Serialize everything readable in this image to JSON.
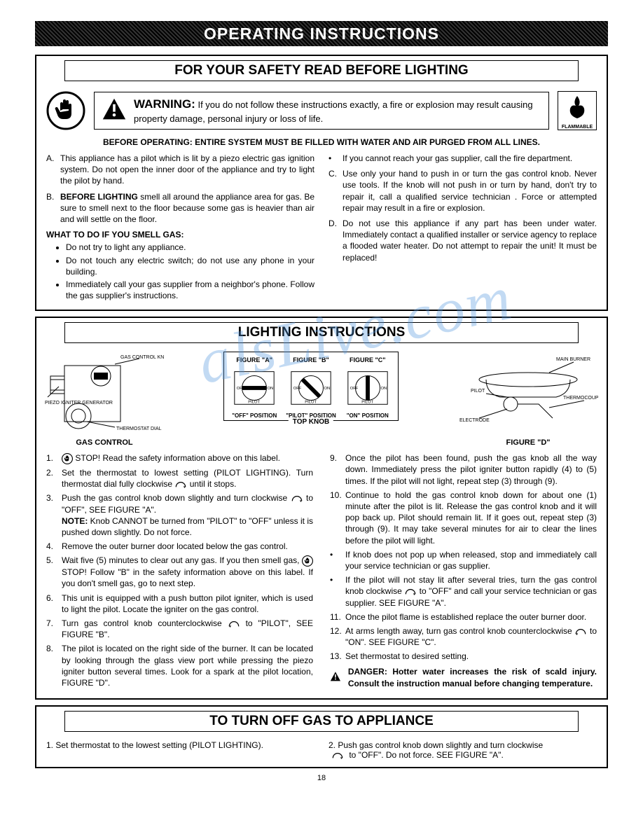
{
  "page_number": "18",
  "main_title": "OPERATING  INSTRUCTIONS",
  "watermark_fragment": "alsLive.com",
  "safety": {
    "header": "FOR YOUR SAFETY READ BEFORE LIGHTING",
    "warning_label": "WARNING:",
    "warning_text": "If you do not follow these instructions exactly, a fire or explosion may result causing property damage, personal injury or loss of life.",
    "flammable_label": "FLAMMABLE",
    "before_operating": "BEFORE OPERATING: ENTIRE SYSTEM MUST BE FILLED WITH WATER AND AIR PURGED FROM ALL LINES.",
    "left_items": [
      {
        "letter": "A.",
        "text": "This appliance has a pilot which is lit by a piezo electric gas ignition system. Do not open the inner door of the appliance and try to light the pilot by hand."
      },
      {
        "letter": "B.",
        "bold_lead": "BEFORE LIGHTING",
        "text": " smell all around the appliance area for gas. Be sure to smell next to the floor because some gas is heavier than air and will settle on the floor."
      }
    ],
    "smell_heading": "WHAT TO DO IF YOU SMELL GAS:",
    "smell_bullets": [
      "Do not try to light any appliance.",
      "Do not touch any electric switch; do not use any phone in your building.",
      "Immediately call your gas supplier from a neighbor's phone. Follow the gas supplier's instructions."
    ],
    "right_items": [
      {
        "letter": "•",
        "text": "If you cannot reach your gas supplier, call the fire department."
      },
      {
        "letter": "C.",
        "text": "Use only your hand to push in or turn the gas control knob. Never use tools. If the knob will not push in or turn by hand, don't try to repair it, call a qualified service technician . Force or attempted repair may result in a fire or explosion."
      },
      {
        "letter": "D.",
        "text": "Do not use this appliance if any part has been under water. Immediately contact a qualified installer or service agency to replace a flooded water heater. Do not attempt to repair the unit! It must be replaced!"
      }
    ]
  },
  "lighting": {
    "header": "LIGHTING INSTRUCTIONS",
    "left_diagram_caption": "GAS CONTROL",
    "left_labels": {
      "knob": "GAS CONTROL KNOB",
      "piezo": "PIEZO IGNITER GENERATOR",
      "thermo": "THERMOSTAT DIAL"
    },
    "knob_group_label": "TOP KNOB",
    "figures": [
      {
        "top": "FIGURE \"A\"",
        "pos": "\"OFF\" POSITION",
        "left": "OFF",
        "right": "ON",
        "bottom": "PILOT"
      },
      {
        "top": "FIGURE \"B\"",
        "pos": "\"PILOT\" POSITION",
        "left": "OFF",
        "right": "ON",
        "bottom": "PILOT"
      },
      {
        "top": "FIGURE \"C\"",
        "pos": "\"ON\" POSITION",
        "left": "OFF",
        "right": "ON",
        "bottom": "PILOT"
      }
    ],
    "right_labels": {
      "main": "MAIN BURNER",
      "pilot": "PILOT",
      "electrode": "ELECTRODE",
      "thermo": "THERMOCOUPLE"
    },
    "right_diagram_caption": "FIGURE \"D\"",
    "steps_left": [
      {
        "n": "1.",
        "text": "STOP!  Read the safety information above on this label.",
        "icon": "hand"
      },
      {
        "n": "2.",
        "text": "Set the thermostat to lowest setting (PILOT LIGHTING). Turn thermostat dial fully clockwise ",
        "arrow": "cw",
        "tail": " until it stops."
      },
      {
        "n": "3.",
        "text": "Push the gas control knob down slightly and turn clockwise ",
        "arrow": "cw",
        "tail": " to \"OFF\", SEE FIGURE \"A\".",
        "note_bold": "NOTE:",
        "note": " Knob CANNOT be turned from \"PILOT\" to \"OFF\" unless it is pushed down slightly.  Do not force."
      },
      {
        "n": "4.",
        "text": "Remove the outer burner door located below the gas control."
      },
      {
        "n": "5.",
        "text": "Wait five (5) minutes to clear out any gas.  If you then smell gas, ",
        "icon": "hand-inline",
        "tail": " STOP!  Follow \"B\" in the safety information above on  this label. If you don't smell gas, go to next step."
      },
      {
        "n": "6.",
        "text": "This unit is equipped with a push button pilot igniter, which is used to light the pilot. Locate the igniter on the gas control."
      },
      {
        "n": "7.",
        "text": "Turn gas control knob counterclockwise ",
        "arrow": "ccw",
        "tail": " to \"PILOT\", SEE FIGURE \"B\"."
      },
      {
        "n": "8.",
        "text": "The pilot is located on the right side of the burner. It can be located by looking through the glass view port while pressing the piezo igniter button several times. Look for a spark at the pilot location,  FIGURE \"D\"."
      }
    ],
    "steps_right": [
      {
        "n": "9.",
        "text": "Once the pilot has been found, push the gas knob all the way down.  Immediately press the pilot igniter button rapidly (4) to (5) times. If the pilot will not light, repeat step (3) through (9)."
      },
      {
        "n": "10.",
        "text": "Continue to hold the gas control knob down for about one (1) minute after the pilot is lit. Release the gas control knob and it will pop back up. Pilot should remain lit. If it goes out, repeat step (3) through (9). It may take several minutes for air to clear the lines before the pilot will light."
      },
      {
        "n": "•",
        "text": "If knob does not pop up when released, stop and immediately call your service technician or gas supplier."
      },
      {
        "n": "•",
        "text": "If the pilot will not stay lit after several tries, turn the gas control knob clockwise ",
        "arrow": "cw",
        "tail": " to \"OFF\" and call your service technician or gas supplier. SEE FIGURE \"A\"."
      },
      {
        "n": "11.",
        "text": "Once the pilot flame is established replace the outer burner door."
      },
      {
        "n": "12.",
        "text": "At arms length away, turn gas control knob counterclockwise ",
        "arrow": "ccw",
        "tail": " to \"ON\". SEE FIGURE \"C\"."
      },
      {
        "n": "13.",
        "text": "Set thermostat to desired setting."
      }
    ],
    "danger": "DANGER: Hotter water increases the risk  of scald injury.  Consult the instruction manual before changing temperature."
  },
  "turnoff": {
    "header": "TO TURN OFF GAS TO APPLIANCE",
    "step1": "1.   Set thermostat to the lowest setting (PILOT LIGHTING).",
    "step2_lead": "2.  Push gas control knob down slightly and turn clockwise",
    "step2_tail": " to \"OFF\".  Do not force. SEE FIGURE \"A\"."
  },
  "colors": {
    "text": "#000000",
    "bg": "#ffffff",
    "watermark": "rgba(80,150,220,0.35)"
  }
}
